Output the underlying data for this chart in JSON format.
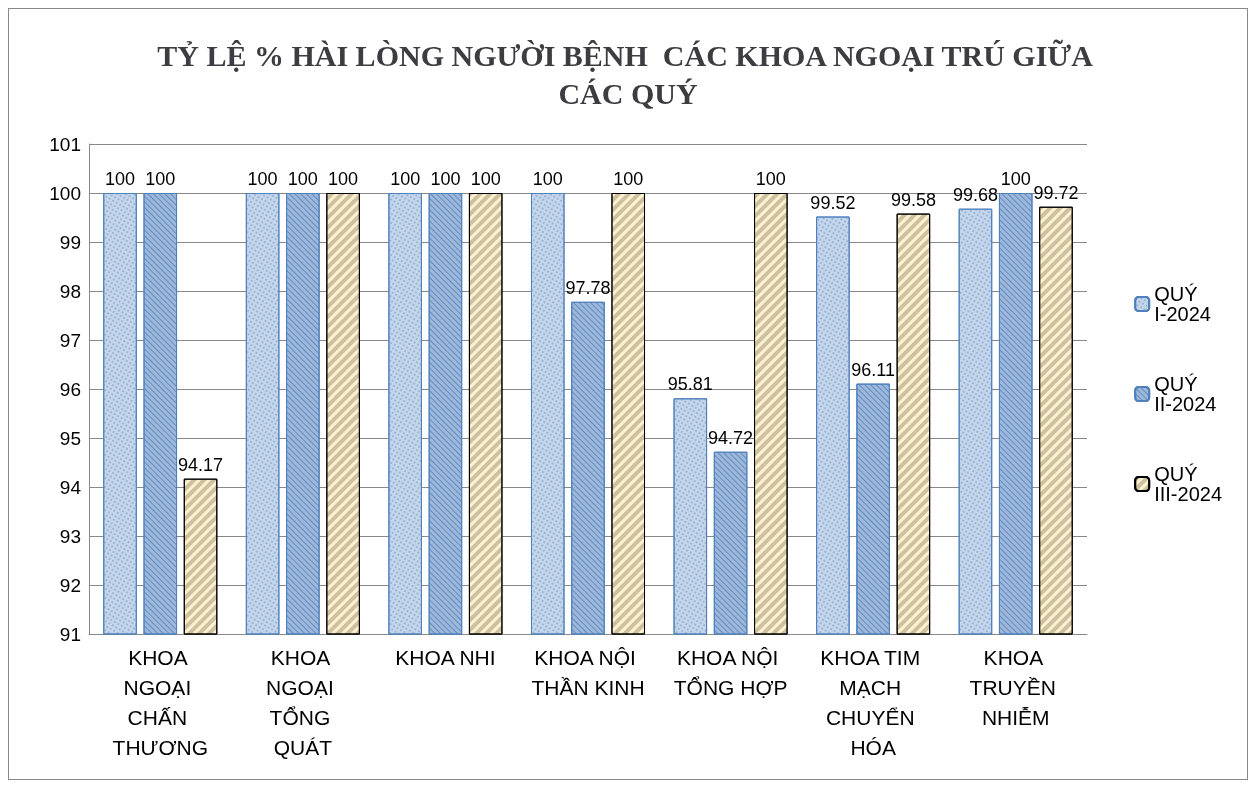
{
  "chart_data": {
    "type": "bar",
    "title": "TỶ LỆ % HÀI LÒNG NGƯỜI BỆNH  CÁC KHOA NGOẠI TRÚ GIỮA CÁC QUÝ",
    "categories": [
      "KHOA NGOẠI CHẤN THƯƠNG",
      "KHOA NGOẠI TỔNG QUÁT",
      "KHOA NHI",
      "KHOA NỘI THẦN KINH",
      "KHOA NỘI TỔNG HỢP",
      "KHOA TIM MẠCH CHUYỂN HÓA",
      "KHOA TRUYỀN NHIỄM"
    ],
    "series": [
      {
        "name": "QUÝ I-2024",
        "color": "#c6d6ea",
        "values": [
          100,
          100,
          100,
          100,
          95.81,
          99.52,
          99.68
        ]
      },
      {
        "name": "QUÝ II-2024",
        "color": "#9fb8d9",
        "values": [
          100,
          100,
          100,
          97.78,
          94.72,
          96.11,
          100
        ]
      },
      {
        "name": "QUÝ III-2024",
        "color": "#fff2cc",
        "values": [
          94.17,
          100,
          100,
          100,
          100,
          99.58,
          99.72
        ]
      }
    ],
    "ylim": [
      91,
      101
    ],
    "yticks": [
      91,
      92,
      93,
      94,
      95,
      96,
      97,
      98,
      99,
      100,
      101
    ],
    "grid": "y",
    "legend": "right",
    "data_labels": true
  }
}
